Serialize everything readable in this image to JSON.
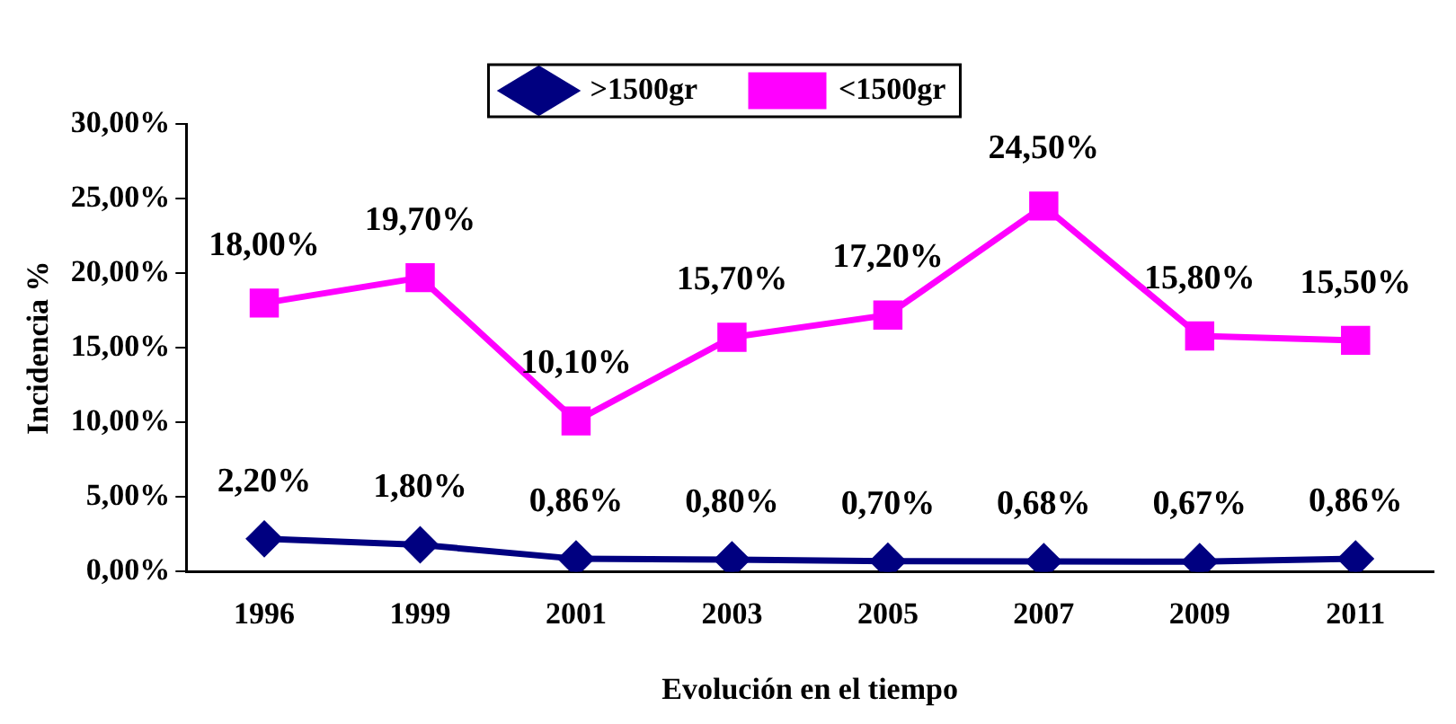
{
  "chart_data": {
    "type": "line",
    "xlabel": "Evolución en el tiempo",
    "ylabel": "Incidencia %",
    "categories": [
      "1996",
      "1999",
      "2001",
      "2003",
      "2005",
      "2007",
      "2009",
      "2011"
    ],
    "series": [
      {
        "name": ">1500gr",
        "color": "#000080",
        "marker": "diamond",
        "values": [
          2.2,
          1.8,
          0.86,
          0.8,
          0.7,
          0.68,
          0.67,
          0.86
        ],
        "value_labels": [
          "2,20%",
          "1,80%",
          "0,86%",
          "0,80%",
          "0,70%",
          "0,68%",
          "0,67%",
          "0,86%"
        ]
      },
      {
        "name": "<1500gr",
        "color": "#ff00ff",
        "marker": "square",
        "values": [
          18,
          19.7,
          10.1,
          15.7,
          17.2,
          24.5,
          15.8,
          15.5
        ],
        "value_labels": [
          "18,00%",
          "19,70%",
          "10,10%",
          "15,70%",
          "17,20%",
          "24,50%",
          "15,80%",
          "15,50%"
        ]
      }
    ],
    "ylim": [
      0,
      30
    ],
    "yticks": [
      {
        "value": 0,
        "label": "0,00%"
      },
      {
        "value": 5,
        "label": "5,00%"
      },
      {
        "value": 10,
        "label": "10,00%"
      },
      {
        "value": 15,
        "label": "15,00%"
      },
      {
        "value": 20,
        "label": "20,00%"
      },
      {
        "value": 25,
        "label": "25,00%"
      },
      {
        "value": 30,
        "label": "30,00%"
      }
    ],
    "grid": false,
    "legend": "top",
    "line_style": "solid"
  }
}
